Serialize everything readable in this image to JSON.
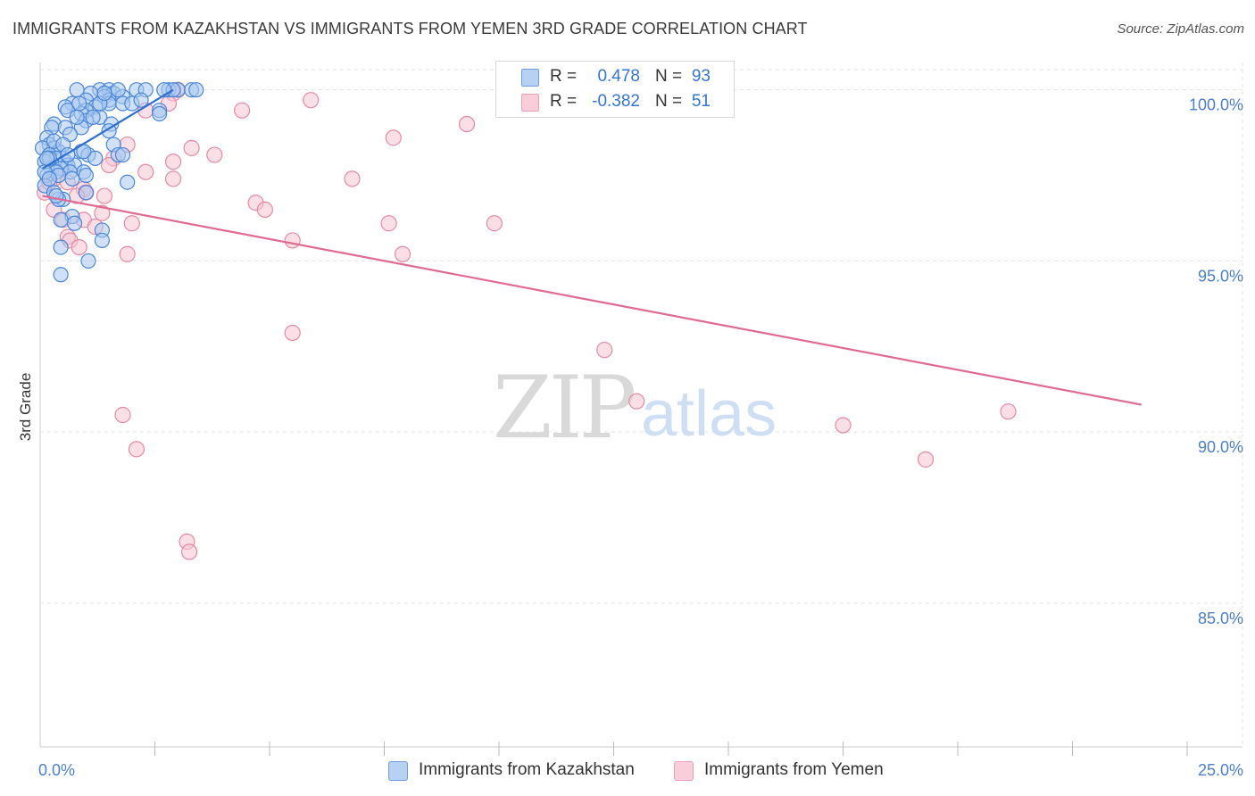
{
  "title": "IMMIGRANTS FROM KAZAKHSTAN VS IMMIGRANTS FROM YEMEN 3RD GRADE CORRELATION CHART",
  "source": "Source: ZipAtlas.com",
  "watermark": {
    "part1": "ZIP",
    "part2": "atlas"
  },
  "colors": {
    "kazakhstan_fill": "#a9c8f0",
    "kazakhstan_stroke": "#4a86d8",
    "kazakhstan_line": "#2f6fd0",
    "yemen_fill": "#f7c4d3",
    "yemen_stroke": "#e58aa6",
    "yemen_line": "#e06a92",
    "tick_text": "#4a7fd0",
    "grid": "#e3e3e3"
  },
  "stats": {
    "kazakhstan": {
      "r_label": "R =",
      "r_value": "0.478",
      "n_label": "N =",
      "n_value": "93"
    },
    "yemen": {
      "r_label": "R =",
      "r_value": "-0.382",
      "n_label": "N =",
      "n_value": "51"
    }
  },
  "legend": {
    "kazakhstan": "Immigrants from Kazakhstan",
    "yemen": "Immigrants from Yemen"
  },
  "chart_data": {
    "type": "scatter",
    "title": "IMMIGRANTS FROM KAZAKHSTAN VS IMMIGRANTS FROM YEMEN 3RD GRADE CORRELATION CHART",
    "xlabel": "",
    "ylabel": "3rd Grade",
    "xlim": [
      0,
      25
    ],
    "ylim": [
      80.8,
      100.8
    ],
    "x_tick_labels": [
      "0.0%",
      "25.0%"
    ],
    "x_minor_ticks": [
      2.5,
      5,
      7.5,
      10,
      12.5,
      15,
      17.5,
      20,
      22.5,
      25
    ],
    "y_ticks": [
      85,
      90,
      95,
      100
    ],
    "y_tick_labels": [
      "85.0%",
      "90.0%",
      "95.0%",
      "100.0%"
    ],
    "grid": true,
    "series": [
      {
        "name": "Immigrants from Kazakhstan",
        "trend": {
          "x": [
            0.05,
            2.9
          ],
          "y": [
            97.7,
            100.0
          ]
        },
        "points": [
          [
            0.8,
            100
          ],
          [
            1.3,
            100
          ],
          [
            1.5,
            100
          ],
          [
            2.1,
            100
          ],
          [
            2.3,
            100
          ],
          [
            2.8,
            100
          ],
          [
            3.0,
            100
          ],
          [
            3.3,
            100
          ],
          [
            3.4,
            100
          ],
          [
            1.1,
            99.9
          ],
          [
            1.6,
            99.9
          ],
          [
            1.8,
            99.8
          ],
          [
            1.4,
            99.8
          ],
          [
            1.5,
            99.7
          ],
          [
            1.0,
            99.7
          ],
          [
            0.7,
            99.6
          ],
          [
            1.8,
            99.6
          ],
          [
            1.5,
            99.6
          ],
          [
            0.55,
            99.5
          ],
          [
            1.2,
            99.5
          ],
          [
            1.0,
            99.4
          ],
          [
            0.6,
            99.4
          ],
          [
            2.6,
            99.4
          ],
          [
            0.9,
            99.3
          ],
          [
            2.6,
            99.3
          ],
          [
            1.3,
            99.2
          ],
          [
            1.0,
            99.1
          ],
          [
            0.3,
            99.0
          ],
          [
            1.55,
            99.0
          ],
          [
            0.9,
            98.9
          ],
          [
            0.25,
            98.9
          ],
          [
            0.55,
            98.9
          ],
          [
            1.5,
            98.8
          ],
          [
            0.65,
            98.7
          ],
          [
            0.15,
            98.6
          ],
          [
            0.2,
            98.4
          ],
          [
            1.6,
            98.4
          ],
          [
            0.3,
            98.3
          ],
          [
            0.05,
            98.3
          ],
          [
            0.9,
            98.2
          ],
          [
            0.4,
            98.2
          ],
          [
            1.05,
            98.1
          ],
          [
            0.2,
            98.1
          ],
          [
            1.7,
            98.1
          ],
          [
            0.35,
            98.0
          ],
          [
            1.2,
            98.0
          ],
          [
            0.1,
            97.9
          ],
          [
            0.55,
            97.9
          ],
          [
            0.6,
            97.8
          ],
          [
            0.75,
            97.8
          ],
          [
            0.25,
            97.7
          ],
          [
            0.45,
            97.7
          ],
          [
            0.95,
            97.6
          ],
          [
            0.35,
            97.6
          ],
          [
            0.65,
            97.6
          ],
          [
            0.15,
            97.5
          ],
          [
            1.0,
            97.5
          ],
          [
            1.9,
            97.3
          ],
          [
            0.1,
            97.2
          ],
          [
            1.0,
            97.0
          ],
          [
            0.5,
            96.8
          ],
          [
            0.4,
            96.8
          ],
          [
            0.7,
            96.3
          ],
          [
            0.45,
            96.2
          ],
          [
            0.75,
            96.1
          ],
          [
            1.35,
            95.9
          ],
          [
            1.35,
            95.6
          ],
          [
            0.45,
            95.4
          ],
          [
            1.05,
            95.0
          ],
          [
            0.45,
            94.6
          ],
          [
            0.3,
            98.5
          ],
          [
            0.2,
            98.0
          ],
          [
            0.5,
            98.4
          ],
          [
            1.3,
            99.6
          ],
          [
            2.0,
            99.6
          ],
          [
            0.85,
            99.6
          ],
          [
            1.7,
            100
          ],
          [
            2.2,
            99.7
          ],
          [
            0.4,
            97.5
          ],
          [
            0.7,
            97.4
          ],
          [
            1.15,
            99.2
          ],
          [
            0.95,
            98.2
          ],
          [
            0.1,
            97.6
          ],
          [
            0.3,
            97.0
          ],
          [
            1.4,
            99.9
          ],
          [
            0.8,
            99.2
          ],
          [
            0.6,
            98.1
          ],
          [
            2.9,
            100
          ],
          [
            0.2,
            97.4
          ],
          [
            1.8,
            98.1
          ],
          [
            0.35,
            96.9
          ],
          [
            2.7,
            100
          ],
          [
            0.15,
            98.0
          ]
        ]
      },
      {
        "name": "Immigrants from Yemen",
        "trend": {
          "x": [
            0.05,
            24.0
          ],
          "y": [
            96.9,
            90.8
          ]
        },
        "points": [
          [
            3.0,
            100
          ],
          [
            2.9,
            99.9
          ],
          [
            2.3,
            99.4
          ],
          [
            2.8,
            99.6
          ],
          [
            4.4,
            99.4
          ],
          [
            5.9,
            99.7
          ],
          [
            9.3,
            99.0
          ],
          [
            7.7,
            98.6
          ],
          [
            1.9,
            98.4
          ],
          [
            3.3,
            98.3
          ],
          [
            3.8,
            98.1
          ],
          [
            1.6,
            98.0
          ],
          [
            2.9,
            97.9
          ],
          [
            1.5,
            97.8
          ],
          [
            2.3,
            97.6
          ],
          [
            0.3,
            97.4
          ],
          [
            2.9,
            97.4
          ],
          [
            6.8,
            97.4
          ],
          [
            0.6,
            97.3
          ],
          [
            0.95,
            97.1
          ],
          [
            1.0,
            97.0
          ],
          [
            1.4,
            96.9
          ],
          [
            0.8,
            96.9
          ],
          [
            4.7,
            96.7
          ],
          [
            4.9,
            96.5
          ],
          [
            0.3,
            96.5
          ],
          [
            1.35,
            96.4
          ],
          [
            0.5,
            96.2
          ],
          [
            0.95,
            96.2
          ],
          [
            2.0,
            96.1
          ],
          [
            7.6,
            96.1
          ],
          [
            9.9,
            96.1
          ],
          [
            1.2,
            96.0
          ],
          [
            0.6,
            95.7
          ],
          [
            5.5,
            95.6
          ],
          [
            0.65,
            95.6
          ],
          [
            0.85,
            95.4
          ],
          [
            1.9,
            95.2
          ],
          [
            7.9,
            95.2
          ],
          [
            5.5,
            92.9
          ],
          [
            12.3,
            92.4
          ],
          [
            13.0,
            90.9
          ],
          [
            21.1,
            90.6
          ],
          [
            1.8,
            90.5
          ],
          [
            17.5,
            90.2
          ],
          [
            2.1,
            89.5
          ],
          [
            19.3,
            89.2
          ],
          [
            3.2,
            86.8
          ],
          [
            3.25,
            86.5
          ],
          [
            0.1,
            97.0
          ],
          [
            0.2,
            97.3
          ]
        ]
      }
    ]
  }
}
